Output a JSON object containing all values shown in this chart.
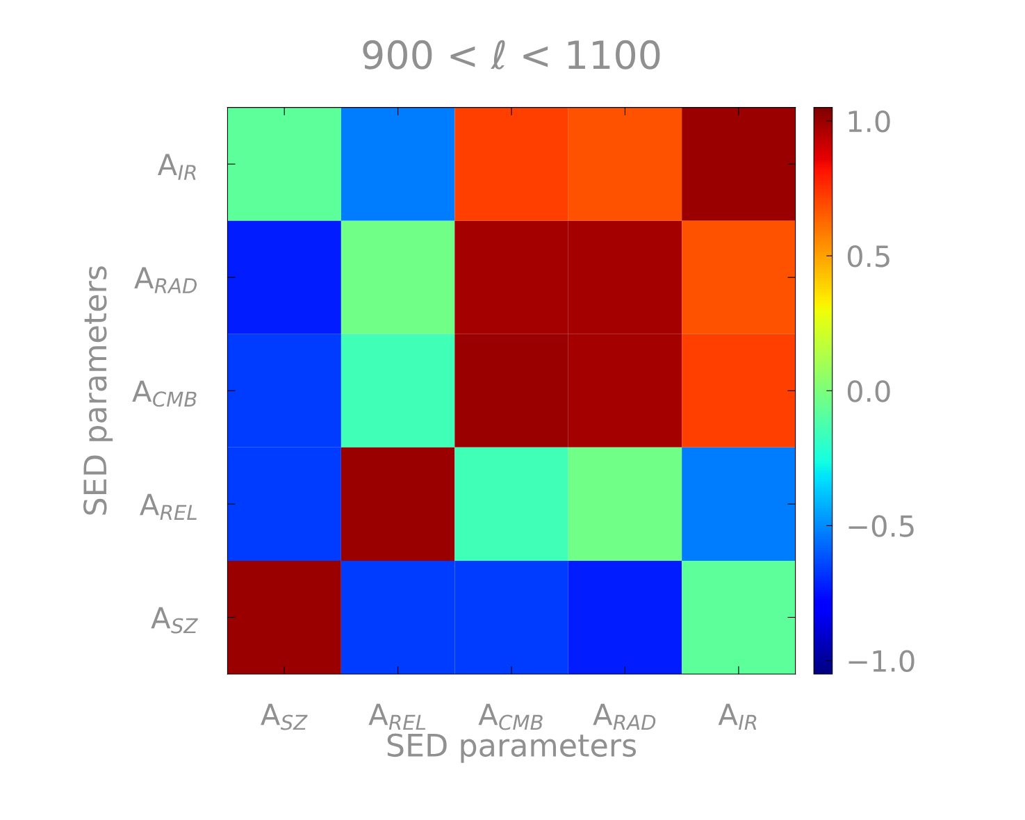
{
  "chart_data": {
    "type": "heatmap",
    "title": "900 < ℓ < 1100",
    "xlabel": "SED parameters",
    "ylabel": "SED parameters",
    "categories": [
      "A$_{SZ}$",
      "A$_{REL}$",
      "A$_{CMB}$",
      "A$_{RAD}$",
      "A$_{IR}$"
    ],
    "y_categories": [
      "A$_{IR}$",
      "A$_{RAD}$",
      "A$_{CMB}$",
      "A$_{REL}$",
      "A$_{SZ}$"
    ],
    "cells": [
      [
        -0.08,
        -0.53,
        0.72,
        0.68,
        1.0
      ],
      [
        -0.73,
        -0.03,
        0.98,
        0.98,
        0.68
      ],
      [
        -0.66,
        -0.15,
        1.0,
        0.98,
        0.72
      ],
      [
        -0.66,
        1.0,
        -0.15,
        -0.03,
        -0.53
      ],
      [
        1.0,
        -0.66,
        -0.66,
        -0.73,
        -0.08
      ]
    ],
    "clim": [
      -1.05,
      1.05
    ],
    "cticks": [
      {
        "value": -1.0,
        "label": "−1.0"
      },
      {
        "value": -0.5,
        "label": "−0.5"
      },
      {
        "value": 0.0,
        "label": "0.0"
      },
      {
        "value": 0.5,
        "label": "0.5"
      },
      {
        "value": 1.0,
        "label": "1.0"
      }
    ]
  }
}
